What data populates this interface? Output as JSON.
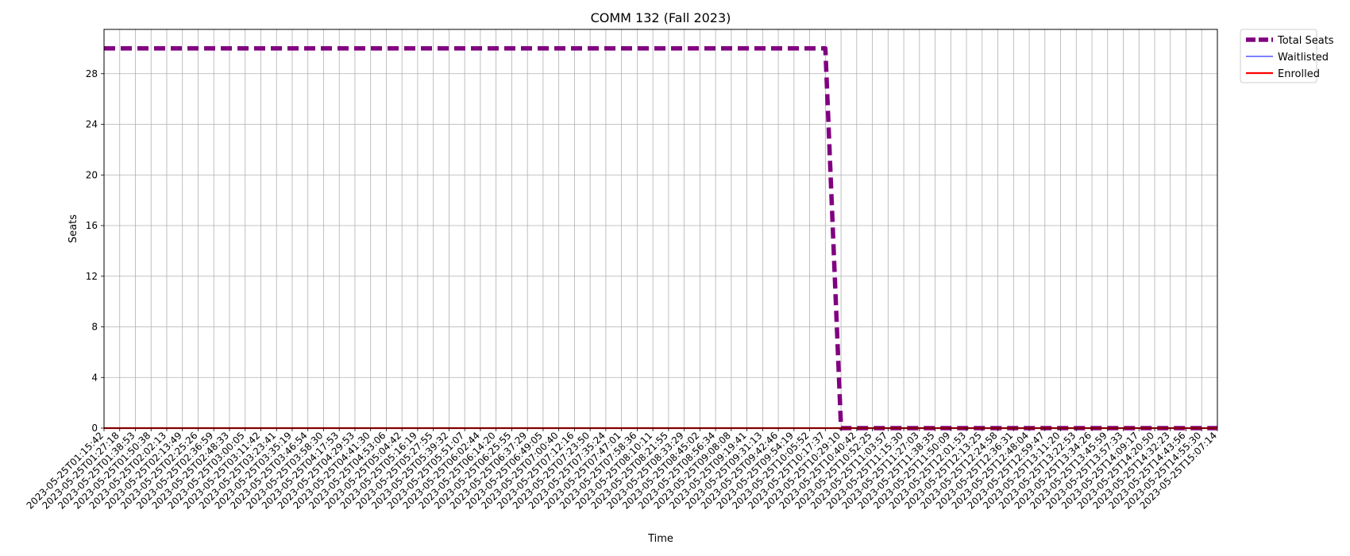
{
  "chart_data": {
    "type": "line",
    "title": "COMM 132 (Fall 2023)",
    "xlabel": "Time",
    "ylabel": "Seats",
    "ylim": [
      0,
      31.5
    ],
    "yticks": [
      0,
      4,
      8,
      12,
      16,
      20,
      24,
      28
    ],
    "grid": true,
    "legend_position": "outside-top-right",
    "x": [
      "2023-05-25T01:15:42",
      "2023-05-25T01:27:18",
      "2023-05-25T01:38:53",
      "2023-05-25T01:50:38",
      "2023-05-25T02:02:13",
      "2023-05-25T02:13:49",
      "2023-05-25T02:25:26",
      "2023-05-25T02:36:59",
      "2023-05-25T02:48:33",
      "2023-05-25T03:00:05",
      "2023-05-25T03:11:42",
      "2023-05-25T03:23:41",
      "2023-05-25T03:35:19",
      "2023-05-25T03:46:54",
      "2023-05-25T03:58:30",
      "2023-05-25T04:17:53",
      "2023-05-25T04:29:53",
      "2023-05-25T04:41:30",
      "2023-05-25T04:53:06",
      "2023-05-25T05:04:42",
      "2023-05-25T05:16:19",
      "2023-05-25T05:27:55",
      "2023-05-25T05:39:32",
      "2023-05-25T05:51:07",
      "2023-05-25T06:02:44",
      "2023-05-25T06:14:20",
      "2023-05-25T06:25:55",
      "2023-05-25T06:37:29",
      "2023-05-25T06:49:05",
      "2023-05-25T07:00:40",
      "2023-05-25T07:12:16",
      "2023-05-25T07:23:50",
      "2023-05-25T07:35:24",
      "2023-05-25T07:47:01",
      "2023-05-25T07:58:36",
      "2023-05-25T08:10:11",
      "2023-05-25T08:21:55",
      "2023-05-25T08:33:29",
      "2023-05-25T08:45:02",
      "2023-05-25T08:56:34",
      "2023-05-25T09:08:08",
      "2023-05-25T09:19:41",
      "2023-05-25T09:31:13",
      "2023-05-25T09:42:46",
      "2023-05-25T09:54:19",
      "2023-05-25T10:05:52",
      "2023-05-25T10:17:37",
      "2023-05-25T10:29:10",
      "2023-05-25T10:40:42",
      "2023-05-25T10:52:25",
      "2023-05-25T11:03:57",
      "2023-05-25T11:15:30",
      "2023-05-25T11:27:03",
      "2023-05-25T11:38:35",
      "2023-05-25T11:50:09",
      "2023-05-25T12:01:53",
      "2023-05-25T12:13:25",
      "2023-05-25T12:24:58",
      "2023-05-25T12:36:31",
      "2023-05-25T12:48:04",
      "2023-05-25T12:59:47",
      "2023-05-25T13:11:20",
      "2023-05-25T13:22:53",
      "2023-05-25T13:34:26",
      "2023-05-25T13:45:59",
      "2023-05-25T13:57:33",
      "2023-05-25T14:09:17",
      "2023-05-25T14:20:50",
      "2023-05-25T14:32:23",
      "2023-05-25T14:43:56",
      "2023-05-25T14:55:30",
      "2023-05-25T15:07:14"
    ],
    "series": [
      {
        "name": "Total Seats",
        "color": "#800080",
        "style": "dashed",
        "values": [
          30,
          30,
          30,
          30,
          30,
          30,
          30,
          30,
          30,
          30,
          30,
          30,
          30,
          30,
          30,
          30,
          30,
          30,
          30,
          30,
          30,
          30,
          30,
          30,
          30,
          30,
          30,
          30,
          30,
          30,
          30,
          30,
          30,
          30,
          30,
          30,
          30,
          30,
          30,
          30,
          30,
          30,
          30,
          30,
          30,
          30,
          30,
          0,
          0,
          0,
          0,
          0,
          0,
          0,
          0,
          0,
          0,
          0,
          0,
          0,
          0,
          0,
          0,
          0,
          0,
          0,
          0,
          0,
          0,
          0,
          0,
          0
        ]
      },
      {
        "name": "Waitlisted",
        "color": "#3333ff",
        "style": "solid",
        "values": [
          0,
          0,
          0,
          0,
          0,
          0,
          0,
          0,
          0,
          0,
          0,
          0,
          0,
          0,
          0,
          0,
          0,
          0,
          0,
          0,
          0,
          0,
          0,
          0,
          0,
          0,
          0,
          0,
          0,
          0,
          0,
          0,
          0,
          0,
          0,
          0,
          0,
          0,
          0,
          0,
          0,
          0,
          0,
          0,
          0,
          0,
          0,
          0,
          0,
          0,
          0,
          0,
          0,
          0,
          0,
          0,
          0,
          0,
          0,
          0,
          0,
          0,
          0,
          0,
          0,
          0,
          0,
          0,
          0,
          0,
          0,
          0
        ]
      },
      {
        "name": "Enrolled",
        "color": "#ff0000",
        "style": "solid",
        "values": [
          0,
          0,
          0,
          0,
          0,
          0,
          0,
          0,
          0,
          0,
          0,
          0,
          0,
          0,
          0,
          0,
          0,
          0,
          0,
          0,
          0,
          0,
          0,
          0,
          0,
          0,
          0,
          0,
          0,
          0,
          0,
          0,
          0,
          0,
          0,
          0,
          0,
          0,
          0,
          0,
          0,
          0,
          0,
          0,
          0,
          0,
          0,
          0,
          0,
          0,
          0,
          0,
          0,
          0,
          0,
          0,
          0,
          0,
          0,
          0,
          0,
          0,
          0,
          0,
          0,
          0,
          0,
          0,
          0,
          0,
          0,
          0
        ]
      }
    ]
  }
}
